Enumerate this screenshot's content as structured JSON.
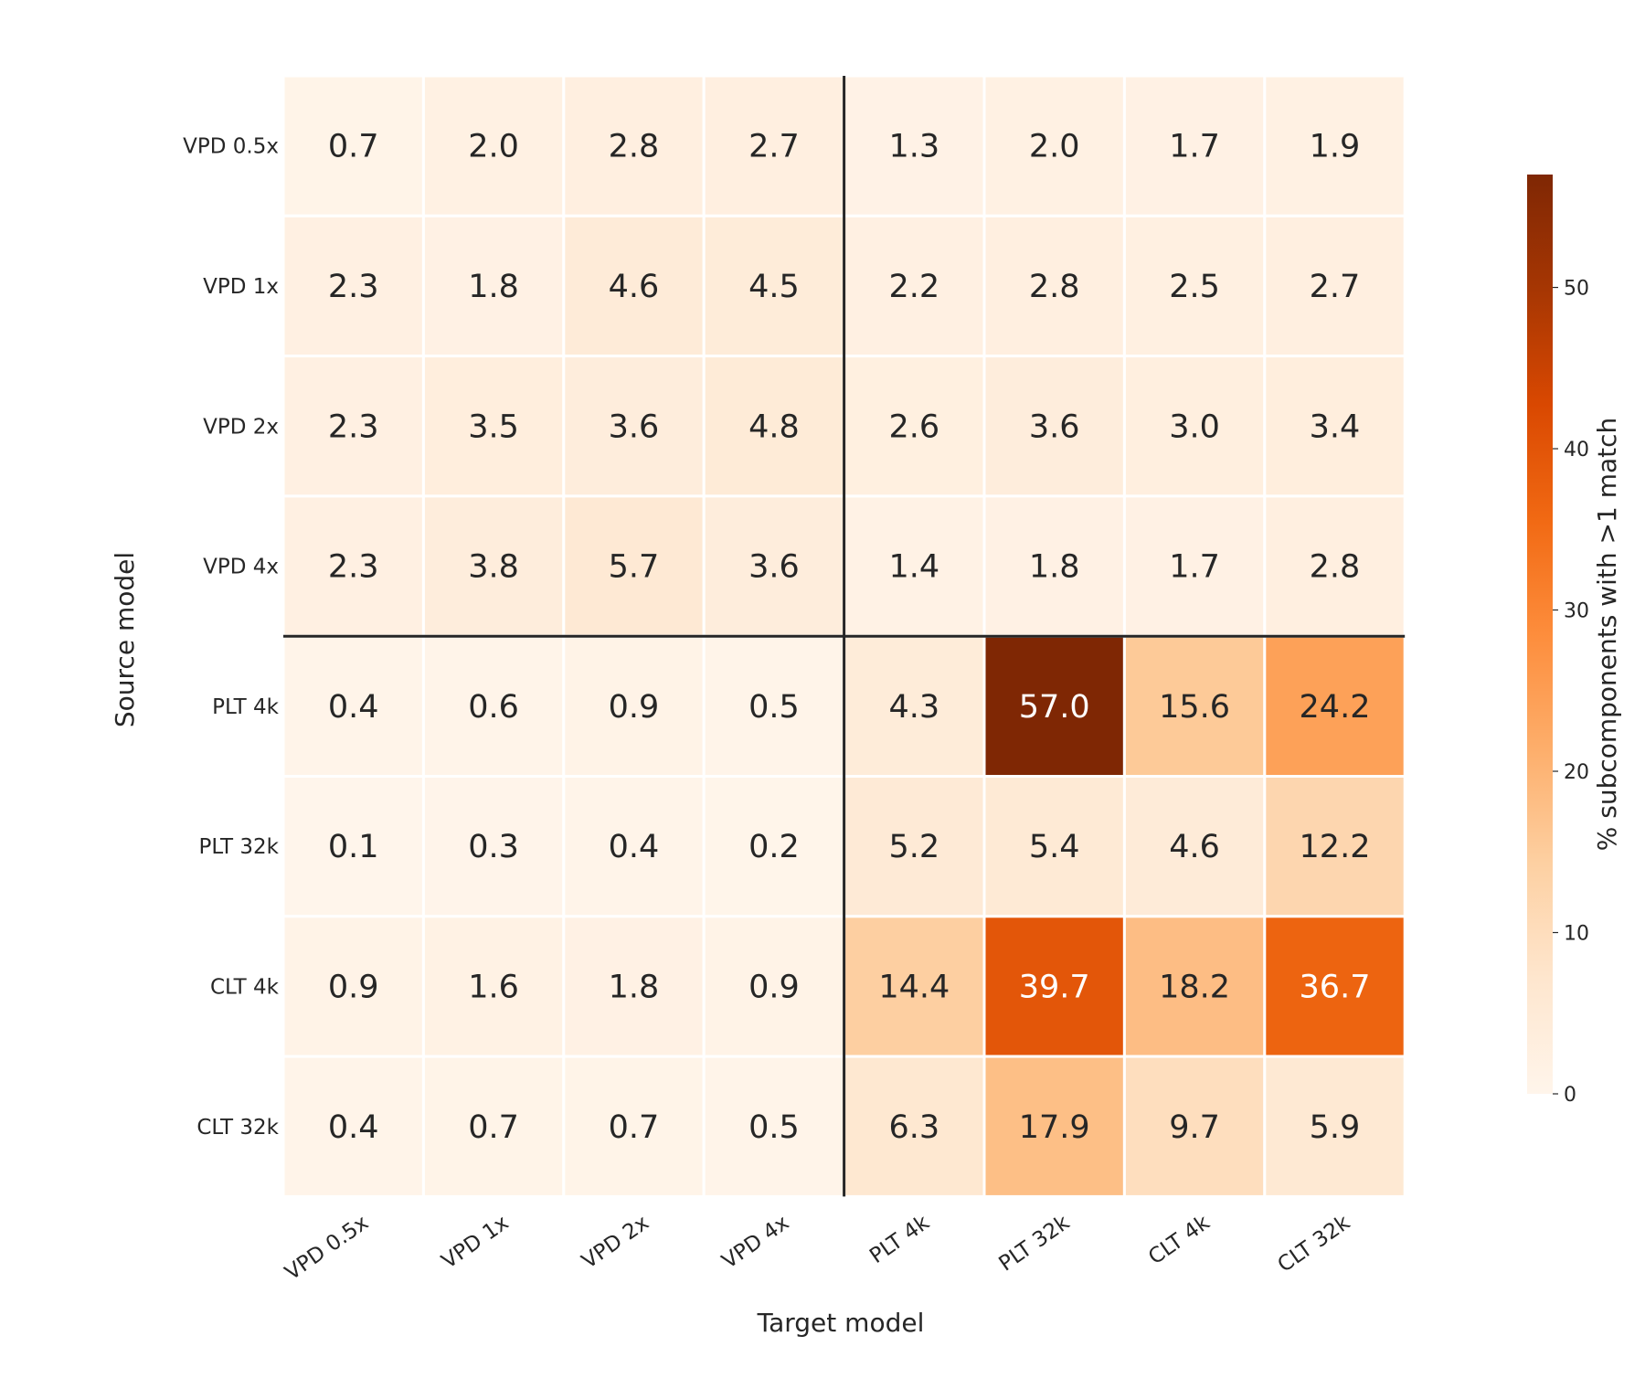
{
  "chart_data": {
    "type": "heatmap",
    "title": "",
    "xlabel": "Target model",
    "ylabel": "Source model",
    "x_categories": [
      "VPD 0.5x",
      "VPD 1x",
      "VPD 2x",
      "VPD 4x",
      "PLT 4k",
      "PLT 32k",
      "CLT 4k",
      "CLT 32k"
    ],
    "y_categories": [
      "VPD 0.5x",
      "VPD 1x",
      "VPD 2x",
      "VPD 4x",
      "PLT 4k",
      "PLT 32k",
      "CLT 4k",
      "CLT 32k"
    ],
    "values": [
      [
        0.7,
        2.0,
        2.8,
        2.7,
        1.3,
        2.0,
        1.7,
        1.9
      ],
      [
        2.3,
        1.8,
        4.6,
        4.5,
        2.2,
        2.8,
        2.5,
        2.7
      ],
      [
        2.3,
        3.5,
        3.6,
        4.8,
        2.6,
        3.6,
        3.0,
        3.4
      ],
      [
        2.3,
        3.8,
        5.7,
        3.6,
        1.4,
        1.8,
        1.7,
        2.8
      ],
      [
        0.4,
        0.6,
        0.9,
        0.5,
        4.3,
        57.0,
        15.6,
        24.2
      ],
      [
        0.1,
        0.3,
        0.4,
        0.2,
        5.2,
        5.4,
        4.6,
        12.2
      ],
      [
        0.9,
        1.6,
        1.8,
        0.9,
        14.4,
        39.7,
        18.2,
        36.7
      ],
      [
        0.4,
        0.7,
        0.7,
        0.5,
        6.3,
        17.9,
        9.7,
        5.9
      ]
    ],
    "colorbar": {
      "label": "% subcomponents with >1 match",
      "range": [
        0,
        57.0
      ],
      "ticks": [
        0,
        10,
        20,
        30,
        40,
        50
      ],
      "colormap": "Oranges"
    },
    "separator_after_index": 4,
    "grid": false
  }
}
